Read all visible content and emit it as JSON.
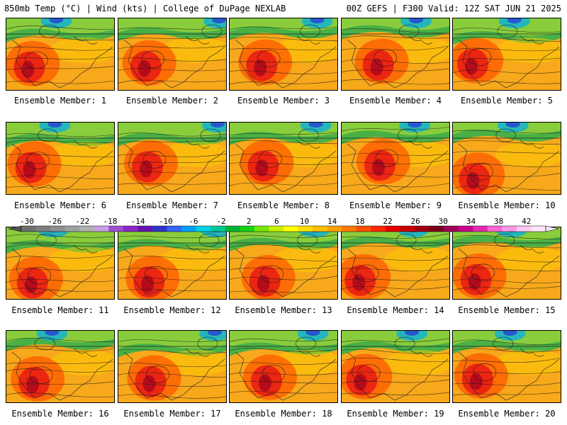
{
  "header": {
    "left": "850mb Temp (°C) | Wind (kts) | College of DuPage NEXLAB",
    "right": "00Z GEFS | F300 Valid: 12Z SAT JUN 21 2025"
  },
  "members": [
    {
      "label": "Ensemble Member: 1"
    },
    {
      "label": "Ensemble Member: 2"
    },
    {
      "label": "Ensemble Member: 3"
    },
    {
      "label": "Ensemble Member: 4"
    },
    {
      "label": "Ensemble Member: 5"
    },
    {
      "label": "Ensemble Member: 6"
    },
    {
      "label": "Ensemble Member: 7"
    },
    {
      "label": "Ensemble Member: 8"
    },
    {
      "label": "Ensemble Member: 9"
    },
    {
      "label": "Ensemble Member: 10"
    },
    {
      "label": "Ensemble Member: 11"
    },
    {
      "label": "Ensemble Member: 12"
    },
    {
      "label": "Ensemble Member: 13"
    },
    {
      "label": "Ensemble Member: 14"
    },
    {
      "label": "Ensemble Member: 15"
    },
    {
      "label": "Ensemble Member: 16"
    },
    {
      "label": "Ensemble Member: 17"
    },
    {
      "label": "Ensemble Member: 18"
    },
    {
      "label": "Ensemble Member: 19"
    },
    {
      "label": "Ensemble Member: 20"
    }
  ],
  "colorbar": {
    "ticks": [
      "-30",
      "-26",
      "-22",
      "-18",
      "-14",
      "-10",
      "-6",
      "-2",
      "2",
      "6",
      "10",
      "14",
      "18",
      "22",
      "26",
      "30",
      "34",
      "38",
      "42"
    ],
    "colors": [
      "#6e6e6e",
      "#7f7f7f",
      "#8f8f8f",
      "#a0a0a0",
      "#b0b0b0",
      "#c8a0e6",
      "#a050d2",
      "#8c28c8",
      "#6414b4",
      "#3232c8",
      "#3264ff",
      "#00a0ff",
      "#00d2e6",
      "#00c896",
      "#00b432",
      "#14d214",
      "#78e600",
      "#c8f000",
      "#ffff00",
      "#ffdc00",
      "#ffbe00",
      "#ffa000",
      "#ff7800",
      "#ff5000",
      "#ff2800",
      "#e60000",
      "#c80000",
      "#a00014",
      "#78001e",
      "#a0005a",
      "#c8008c",
      "#e628b4",
      "#ff64d2",
      "#ff96e6",
      "#ffc8f0",
      "#ffe6fa"
    ]
  }
}
